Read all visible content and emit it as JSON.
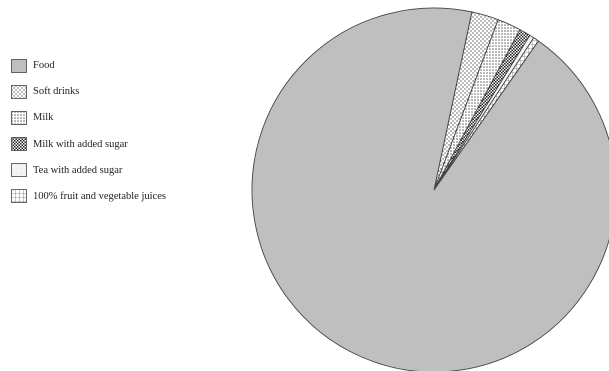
{
  "chart_data": {
    "type": "pie",
    "title": "",
    "series": [
      {
        "name": "Food",
        "value": 93.6,
        "pattern": "solid-gray"
      },
      {
        "name": "Soft drinks",
        "value": 2.4,
        "pattern": "fine-dots"
      },
      {
        "name": "Milk",
        "value": 2.1,
        "pattern": "dots"
      },
      {
        "name": "Milk with added sugar",
        "value": 1.0,
        "pattern": "dense-checker"
      },
      {
        "name": "Tea with added sugar",
        "value": 0.4,
        "pattern": "light"
      },
      {
        "name": "100% fruit and vegetable juices",
        "value": 0.5,
        "pattern": "grid"
      }
    ],
    "legend_position": "left",
    "colors": {
      "food": "#bfbfbf",
      "edge": "#444444"
    }
  }
}
